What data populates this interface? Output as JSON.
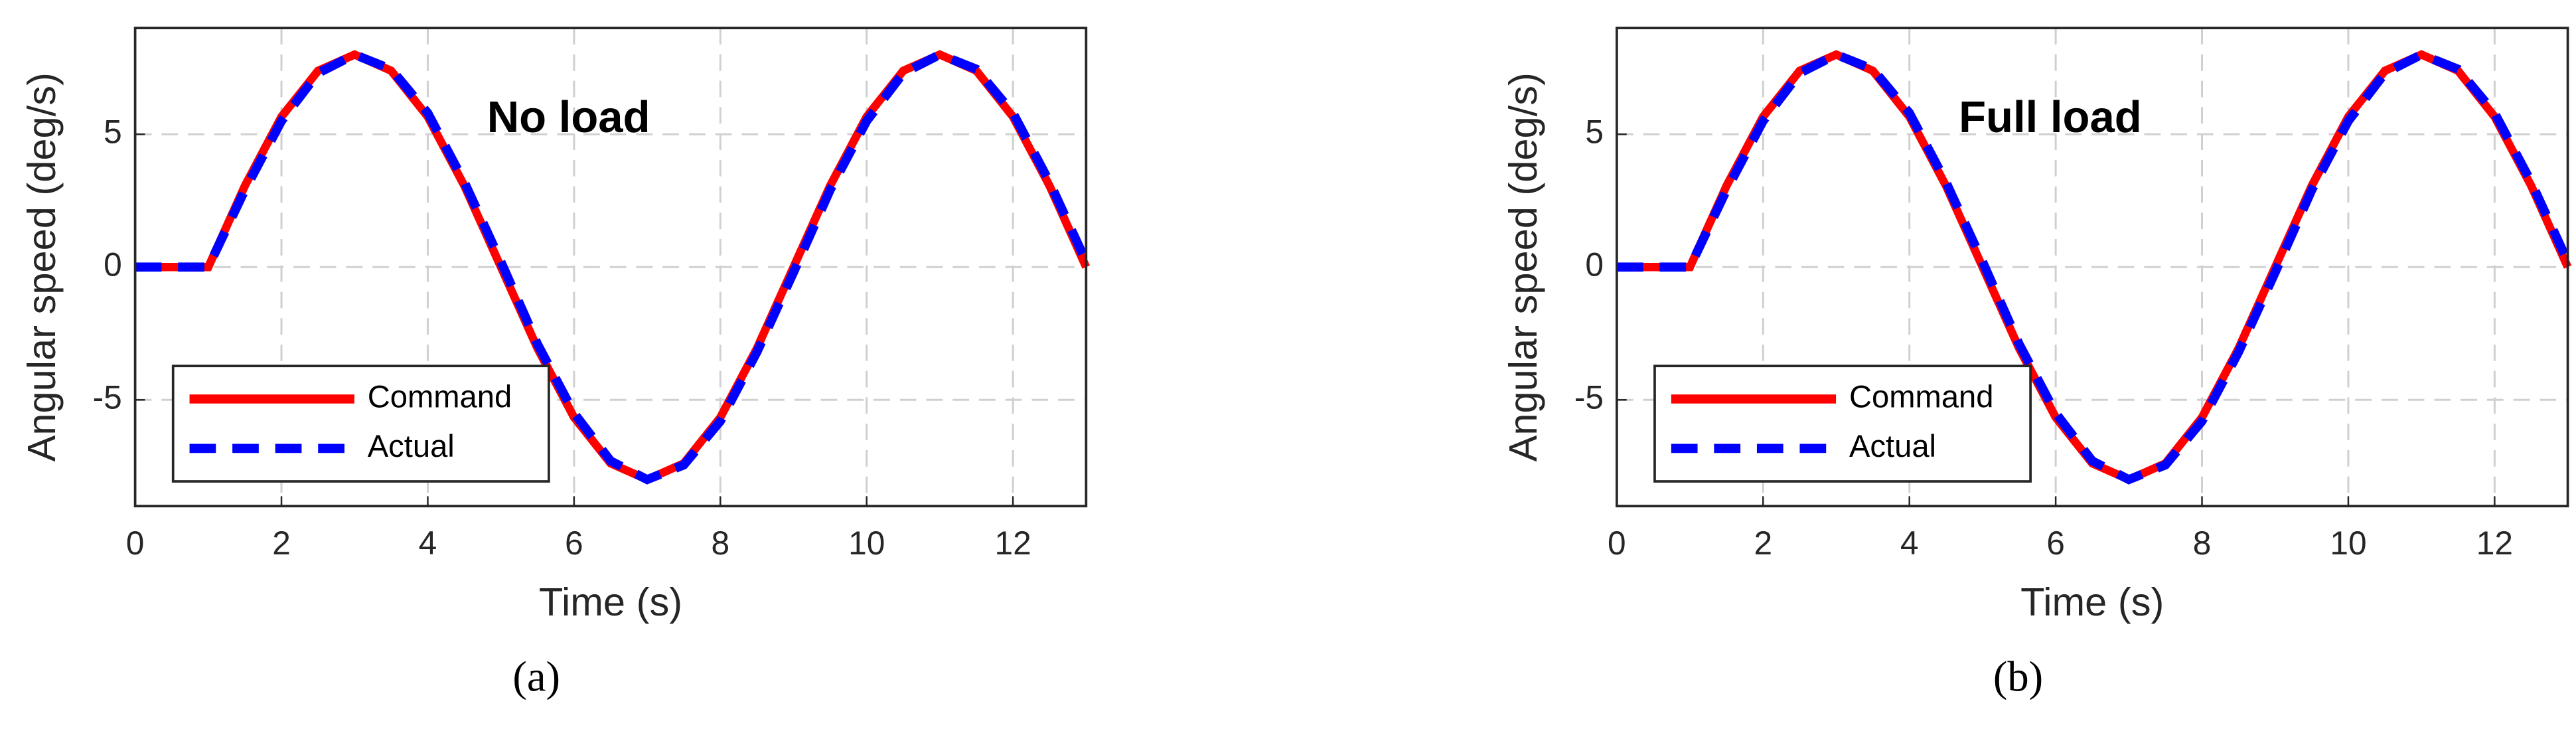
{
  "chart_data": [
    {
      "type": "line",
      "annotation": "No load",
      "caption": "(a)",
      "xlabel": "Time (s)",
      "ylabel": "Angular speed (deg/s)",
      "x": [
        0,
        0.5,
        1,
        1.5,
        2,
        2.5,
        3,
        3.5,
        4,
        4.5,
        5,
        5.5,
        6,
        6.5,
        7,
        7.5,
        8,
        8.5,
        9,
        9.5,
        10,
        10.5,
        11,
        11.5,
        12,
        12.5,
        13
      ],
      "series": [
        {
          "name": "Command",
          "color": "#ff0000",
          "values": [
            0,
            0,
            0,
            3.06,
            5.66,
            7.39,
            8,
            7.39,
            5.66,
            3.06,
            0,
            -3.06,
            -5.66,
            -7.39,
            -8,
            -7.39,
            -5.66,
            -3.06,
            0,
            3.06,
            5.66,
            7.39,
            8,
            7.39,
            5.66,
            3.06,
            0
          ]
        },
        {
          "name": "Actual",
          "color": "#0000ff",
          "values": [
            0,
            0,
            0,
            2.9,
            5.5,
            7.3,
            8,
            7.45,
            5.8,
            3.2,
            0.2,
            -2.9,
            -5.5,
            -7.3,
            -8,
            -7.45,
            -5.8,
            -3.2,
            -0.2,
            2.9,
            5.5,
            7.3,
            8,
            7.45,
            5.8,
            3.2,
            0.2
          ]
        }
      ],
      "xlim": [
        0,
        13
      ],
      "ylim": [
        -9,
        9
      ],
      "xticks": [
        0,
        2,
        4,
        6,
        8,
        10,
        12
      ],
      "yticks": [
        -5,
        0,
        5
      ],
      "grid": true,
      "legend": "lower left"
    },
    {
      "type": "line",
      "annotation": "Full load",
      "caption": "(b)",
      "xlabel": "Time (s)",
      "ylabel": "Angular speed (deg/s)",
      "x": [
        0,
        0.5,
        1,
        1.5,
        2,
        2.5,
        3,
        3.5,
        4,
        4.5,
        5,
        5.5,
        6,
        6.5,
        7,
        7.5,
        8,
        8.5,
        9,
        9.5,
        10,
        10.5,
        11,
        11.5,
        12,
        12.5,
        13
      ],
      "series": [
        {
          "name": "Command",
          "color": "#ff0000",
          "values": [
            0,
            0,
            0,
            3.06,
            5.66,
            7.39,
            8,
            7.39,
            5.66,
            3.06,
            0,
            -3.06,
            -5.66,
            -7.39,
            -8,
            -7.39,
            -5.66,
            -3.06,
            0,
            3.06,
            5.66,
            7.39,
            8,
            7.39,
            5.66,
            3.06,
            0
          ]
        },
        {
          "name": "Actual",
          "color": "#0000ff",
          "values": [
            0,
            0,
            0,
            2.9,
            5.5,
            7.3,
            8,
            7.45,
            5.8,
            3.2,
            0.2,
            -2.9,
            -5.5,
            -7.3,
            -8,
            -7.45,
            -5.8,
            -3.2,
            -0.2,
            2.9,
            5.5,
            7.3,
            8,
            7.45,
            5.8,
            3.2,
            0.2
          ]
        }
      ],
      "xlim": [
        0,
        13
      ],
      "ylim": [
        -9,
        9
      ],
      "xticks": [
        0,
        2,
        4,
        6,
        8,
        10,
        12
      ],
      "yticks": [
        -5,
        0,
        5
      ],
      "grid": true,
      "legend": "lower left"
    }
  ]
}
